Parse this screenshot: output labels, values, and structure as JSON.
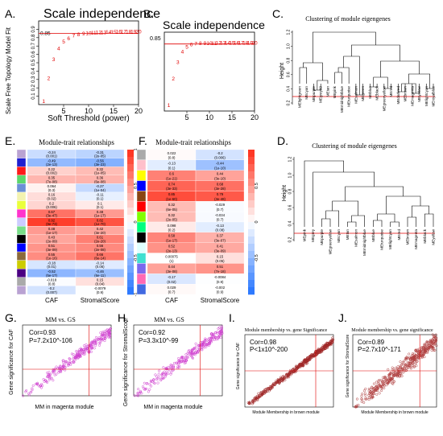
{
  "panels": {
    "A": {
      "letter": "A.",
      "title": "Scale independence",
      "xlabel": "Soft Threshold (power)",
      "ylabel": "Scale Free Topology Model Fit",
      "cutoff_label": "0.85",
      "xticks": [
        "5",
        "10",
        "15",
        "20"
      ],
      "yticks": [
        "0.1",
        "0.2",
        "0.3",
        "0.4",
        "0.5",
        "0.6",
        "0.7",
        "0.8",
        "0.9"
      ]
    },
    "B": {
      "letter": "B.",
      "title": "Scale independence",
      "cutoff_label": "0.85",
      "xticks": [
        "5",
        "10",
        "15",
        "20"
      ]
    },
    "C": {
      "letter": "C.",
      "title": "Clustering of module eigengenes",
      "ylabel": "Height",
      "yticks": [
        "0.2",
        "0.4",
        "0.6",
        "0.8",
        "1.0",
        "1.2"
      ],
      "leaves": [
        "MElightgreen",
        "MEcyan",
        "MEpurple",
        "MEgrey60",
        "MEtan",
        "MEpink",
        "MEmidnightblue",
        "MEturquoise",
        "MEsalmon",
        "MEgreen",
        "MEblue",
        "MEblack",
        "MEgreenyellow",
        "MEred",
        "MEdarkred",
        "MEbrown",
        "MEmagenta",
        "MEyellow",
        "MElightcyan",
        "MEroyalblue"
      ]
    },
    "D": {
      "letter": "D.",
      "title": "Clustering of module eigengenes",
      "ylabel": "Height",
      "yticks": [
        "0.2",
        "0.4",
        "0.6",
        "0.8",
        "1.0",
        "1.2"
      ],
      "leaves": [
        "MEpink",
        "MEgrey",
        "MEpurple",
        "MEgreenyellow",
        "MEcyan",
        "MEtan",
        "MEsalmon",
        "MEmidnightblue",
        "MEblue",
        "MEturquoise",
        "MElightcyan",
        "MEred",
        "MEbrown",
        "MEmagenta",
        "MEblack",
        "MEyellow"
      ]
    },
    "E": {
      "letter": "E.",
      "title": "Module-trait relationships",
      "columns": [
        "CAF",
        "StromalScore"
      ],
      "legend_ticks": [
        "1",
        "0.5",
        "0",
        "-0.5",
        "-1"
      ],
      "module_colors": [
        "#b9a2d2",
        "#1f1fd0",
        "#ff1a1a",
        "#5cd66b",
        "#6b8fd6",
        "#f3f3b0",
        "#eaff3b",
        "#ff33cc",
        "#ccccff",
        "#77dd88",
        "#000000",
        "#0000ff",
        "#8b6a3c",
        "#cccc00",
        "#4b0082",
        "#aaaaaa"
      ],
      "cells": [
        [
          {
            "v": "-0.24",
            "p": "(0.001)"
          },
          {
            "v": "-0.31",
            "p": "(2e-05)"
          }
        ],
        [
          {
            "v": "-0.49",
            "p": "(2e-13)"
          },
          {
            "v": "-0.56",
            "p": "(3e-23)"
          }
        ],
        [
          {
            "v": "0.22",
            "p": "(0.002)"
          },
          {
            "v": "0.32",
            "p": "(1e-05)"
          }
        ],
        [
          {
            "v": "0.35",
            "p": "(7e-08)"
          },
          {
            "v": "0.36",
            "p": "(6e-08)"
          }
        ],
        [
          {
            "v": "0.064",
            "p": "(0.3)"
          },
          {
            "v": "-0.27",
            "p": "(1e-04)"
          }
        ],
        [
          {
            "v": "0.16",
            "p": "(0.02)"
          },
          {
            "v": "-0.11",
            "p": "(0.1)"
          }
        ],
        [
          {
            "v": "0.2",
            "p": "(0.006)"
          },
          {
            "v": "0.1",
            "p": "(0.1)"
          }
        ],
        [
          {
            "v": "0.67",
            "p": "(3e-47)"
          },
          {
            "v": "0.48",
            "p": "(1e-17)"
          }
        ],
        [
          {
            "v": "0.92",
            "p": "(9e-73)"
          },
          {
            "v": "0.82",
            "p": "(1e-70)"
          }
        ],
        [
          {
            "v": "0.48",
            "p": "(1e-17)"
          },
          {
            "v": "0.42",
            "p": "(3e-20)"
          }
        ],
        [
          {
            "v": "0.43",
            "p": "(2e-09)"
          },
          {
            "v": "0.61",
            "p": "(2e-20)"
          }
        ],
        [
          {
            "v": "0.51",
            "p": "(3e-09)"
          },
          {
            "v": "0.56",
            "p": "(2e-08)"
          }
        ],
        [
          {
            "v": "0.55",
            "p": "(1e-16)"
          },
          {
            "v": "0.66",
            "p": "(6e-14)"
          }
        ],
        [
          {
            "v": "-0.18",
            "p": "(0.01)"
          },
          {
            "v": "-0.14",
            "p": "(0.06)"
          }
        ],
        [
          {
            "v": "-0.52",
            "p": "(5e-17)"
          },
          {
            "v": "-0.46",
            "p": "(6e-11)"
          }
        ],
        [
          {
            "v": "-0.018",
            "p": "(0.8)"
          },
          {
            "v": "0.15",
            "p": "(0.04)"
          }
        ],
        [
          {
            "v": "-0.2",
            "p": "(0.007)"
          },
          {
            "v": "-0.0079",
            "p": "(0.9)"
          }
        ]
      ]
    },
    "F": {
      "letter": "F.",
      "title": "Module-trait relationships",
      "columns": [
        "CAF",
        "StromalScore"
      ],
      "legend_ticks": [
        "0.5",
        "0",
        "-0.5"
      ],
      "module_colors": [
        "#aaaaaa",
        "#ffc0cb",
        "#ffff00",
        "#0000ff",
        "#8b4513",
        "#ff0000",
        "#7fff00",
        "#00ff7f",
        "#000000",
        "#e0ffff",
        "#40e0d0",
        "#7b68ee",
        "#ff69b4",
        "#4169e1",
        "#808080",
        "#a9a9a9"
      ],
      "cells": [
        [
          {
            "v": "0.022",
            "p": "(0.8)"
          },
          {
            "v": "-0.2",
            "p": "(0.006)"
          }
        ],
        [
          {
            "v": "-0.13",
            "p": "(0.1)"
          },
          {
            "v": "-0.44",
            "p": "(1e-10)"
          }
        ],
        [
          {
            "v": "0.6",
            "p": "(1e-21)"
          },
          {
            "v": "0.44",
            "p": "(3e-10)"
          }
        ],
        [
          {
            "v": "0.74",
            "p": "(3e-33)"
          },
          {
            "v": "0.68",
            "p": "(3e-28)"
          }
        ],
        [
          {
            "v": "0.85",
            "p": "(1e-60)"
          },
          {
            "v": "0.79",
            "p": "(3e-48)"
          }
        ],
        [
          {
            "v": "0.32",
            "p": "(6e-05)"
          },
          {
            "v": "-0.029",
            "p": "(0.7)"
          }
        ],
        [
          {
            "v": "0.32",
            "p": "(2e-05)"
          },
          {
            "v": "-0.034",
            "p": "(0.7)"
          }
        ],
        [
          {
            "v": "0.098",
            "p": "(0.2)"
          },
          {
            "v": "-0.13",
            "p": "(0.08)"
          }
        ],
        [
          {
            "v": "0.58",
            "p": "(1e-17)"
          },
          {
            "v": "0.37",
            "p": "(3e-07)"
          }
        ],
        [
          {
            "v": "0.52",
            "p": "(2e-13)"
          },
          {
            "v": "0.41",
            "p": "(3e-09)"
          }
        ],
        [
          {
            "v": "0.00075",
            "p": "(1)"
          },
          {
            "v": "0.15",
            "p": "(0.05)"
          }
        ],
        [
          {
            "v": "0.44",
            "p": "(3e-08)"
          },
          {
            "v": "0.51",
            "p": "(7e-18)"
          }
        ],
        [
          {
            "v": "-0.17",
            "p": "(0.02)"
          },
          {
            "v": "-0.0084",
            "p": "(0.9)"
          }
        ],
        [
          {
            "v": "0.029",
            "p": "(0.7)"
          },
          {
            "v": "-0.002",
            "p": "(0.9)"
          }
        ]
      ]
    },
    "G": {
      "letter": "G.",
      "title": "MM vs. GS",
      "xlabel": "MM in magenta module",
      "ylabel": "Gene significance for CAF",
      "cor": "Cor=0.93",
      "p": "P=7.2x10^-106"
    },
    "H": {
      "letter": "H.",
      "title": "MM vs. GS",
      "xlabel": "MM in magenta module",
      "ylabel": "Gene significance for StromalScore",
      "cor": "Cor=0.92",
      "p": "P=3.3x10^-99"
    },
    "I": {
      "letter": "I.",
      "title": "Module membership vs. gene Significance",
      "xlabel": "Module Membership in brown module",
      "ylabel": "Gene significance for CAF",
      "cor": "Cor=0.98",
      "p": "P<1x10^-200"
    },
    "J": {
      "letter": "J.",
      "title": "Module membership vs. gene significance",
      "xlabel": "Module Membership in brown module",
      "ylabel": "Gene significance for StromalScore",
      "cor": "Cor=0.89",
      "p": "P=2.7x10^-171"
    }
  },
  "chart_data": [
    {
      "type": "scatter",
      "panel": "A",
      "title": "Scale independence",
      "xlabel": "Soft Threshold (power)",
      "ylabel": "Scale Free Topology Model Fit",
      "x": [
        1,
        2,
        3,
        4,
        5,
        6,
        7,
        8,
        9,
        10,
        11,
        12,
        13,
        14,
        15,
        16,
        17,
        18,
        19,
        20
      ],
      "y": [
        0.05,
        0.32,
        0.55,
        0.68,
        0.76,
        0.8,
        0.83,
        0.845,
        0.855,
        0.86,
        0.865,
        0.87,
        0.872,
        0.874,
        0.876,
        0.878,
        0.879,
        0.88,
        0.881,
        0.882
      ],
      "xlim": [
        0,
        20
      ],
      "ylim": [
        0,
        1
      ],
      "cutoff": 0.85
    },
    {
      "type": "scatter",
      "panel": "B",
      "title": "Scale independence",
      "x": [
        1,
        2,
        3,
        4,
        5,
        6,
        7,
        8,
        9,
        10,
        11,
        12,
        13,
        14,
        15,
        16,
        17,
        18,
        19,
        20
      ],
      "y": [
        0.08,
        0.42,
        0.63,
        0.76,
        0.82,
        0.85,
        0.86,
        0.865,
        0.867,
        0.868,
        0.869,
        0.87,
        0.871,
        0.872,
        0.873,
        0.873,
        0.874,
        0.874,
        0.875,
        0.875
      ],
      "xlim": [
        0,
        20
      ],
      "ylim": [
        0,
        1
      ],
      "cutoff": 0.85
    },
    {
      "type": "scatter",
      "panel": "G",
      "cor": 0.93,
      "x_range": [
        0.2,
        1.0
      ],
      "y_range": [
        0.2,
        1.0
      ],
      "vline": 0.8,
      "hline": 0.5
    },
    {
      "type": "scatter",
      "panel": "H",
      "cor": 0.92,
      "x_range": [
        0.2,
        1.0
      ],
      "y_range": [
        0.2,
        1.0
      ],
      "vline": 0.8,
      "hline": 0.5
    },
    {
      "type": "scatter",
      "panel": "I",
      "cor": 0.98,
      "x_range": [
        0.0,
        1.0
      ],
      "y_range": [
        0.0,
        1.0
      ],
      "vline": 0.8,
      "hline": 0.5
    },
    {
      "type": "scatter",
      "panel": "J",
      "cor": 0.89,
      "x_range": [
        0.0,
        1.0
      ],
      "y_range": [
        0.0,
        1.0
      ],
      "vline": 0.8,
      "hline": 0.5
    }
  ]
}
